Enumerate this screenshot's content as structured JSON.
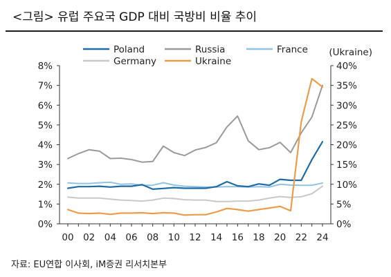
{
  "title": "<그림> 유럽 주요국 GDP 대비 국방비 비율 추이",
  "source": "자료: EU연합 이사회, iM증권 리서치본부",
  "chart_data": {
    "type": "line",
    "x": [
      "00",
      "01",
      "02",
      "03",
      "04",
      "05",
      "06",
      "07",
      "08",
      "09",
      "10",
      "11",
      "12",
      "13",
      "14",
      "15",
      "16",
      "17",
      "18",
      "19",
      "20",
      "21",
      "22",
      "23",
      "24"
    ],
    "x_tick_labels": [
      "00",
      "02",
      "04",
      "06",
      "08",
      "10",
      "12",
      "14",
      "16",
      "18",
      "20",
      "22",
      "24"
    ],
    "y_left": {
      "ylim": [
        0,
        8
      ],
      "ticks": [
        "0%",
        "1%",
        "2%",
        "3%",
        "4%",
        "5%",
        "6%",
        "7%",
        "8%"
      ]
    },
    "y_right": {
      "ylim": [
        0,
        40
      ],
      "ticks": [
        "0%",
        "5%",
        "10%",
        "15%",
        "20%",
        "25%",
        "30%",
        "35%",
        "40%"
      ],
      "label": "(Ukraine)"
    },
    "grid": false,
    "legend_position": "top",
    "series": [
      {
        "name": "Poland",
        "axis": "left",
        "color": "#1f6aa5",
        "width": 2.2,
        "values": [
          1.8,
          1.88,
          1.88,
          1.9,
          1.86,
          1.9,
          1.9,
          1.98,
          1.75,
          1.79,
          1.83,
          1.8,
          1.8,
          1.8,
          1.88,
          2.13,
          1.92,
          1.88,
          2.02,
          1.95,
          2.25,
          2.2,
          2.2,
          3.25,
          4.15
        ]
      },
      {
        "name": "Russia",
        "axis": "left",
        "color": "#9a9a9a",
        "width": 2.0,
        "values": [
          3.3,
          3.55,
          3.75,
          3.67,
          3.3,
          3.32,
          3.25,
          3.12,
          3.15,
          3.93,
          3.6,
          3.45,
          3.73,
          3.86,
          4.1,
          4.9,
          5.45,
          4.2,
          3.75,
          3.85,
          4.12,
          3.6,
          4.6,
          5.4,
          7.0
        ]
      },
      {
        "name": "France",
        "axis": "left",
        "color": "#8fc2e4",
        "width": 2.0,
        "values": [
          2.07,
          2.04,
          2.04,
          2.08,
          2.1,
          2.0,
          2.02,
          1.95,
          1.95,
          2.08,
          1.96,
          1.9,
          1.88,
          1.86,
          1.86,
          1.88,
          1.88,
          1.86,
          1.88,
          1.86,
          2.0,
          1.96,
          1.95,
          1.95,
          2.06
        ]
      },
      {
        "name": "Germany",
        "axis": "left",
        "color": "#c8c8c8",
        "width": 2.0,
        "values": [
          1.35,
          1.3,
          1.3,
          1.3,
          1.25,
          1.2,
          1.18,
          1.15,
          1.2,
          1.3,
          1.28,
          1.22,
          1.2,
          1.2,
          1.13,
          1.13,
          1.15,
          1.15,
          1.2,
          1.3,
          1.38,
          1.33,
          1.37,
          1.52,
          1.9
        ]
      },
      {
        "name": "Ukraine",
        "axis": "right",
        "color": "#ec9c4a",
        "width": 2.2,
        "values": [
          3.6,
          2.7,
          2.6,
          2.7,
          2.4,
          2.7,
          2.7,
          2.8,
          2.6,
          2.8,
          2.7,
          2.2,
          2.3,
          2.3,
          3.0,
          3.9,
          3.6,
          3.2,
          3.6,
          4.0,
          4.4,
          3.3,
          25.8,
          36.7,
          34.6
        ]
      }
    ]
  }
}
